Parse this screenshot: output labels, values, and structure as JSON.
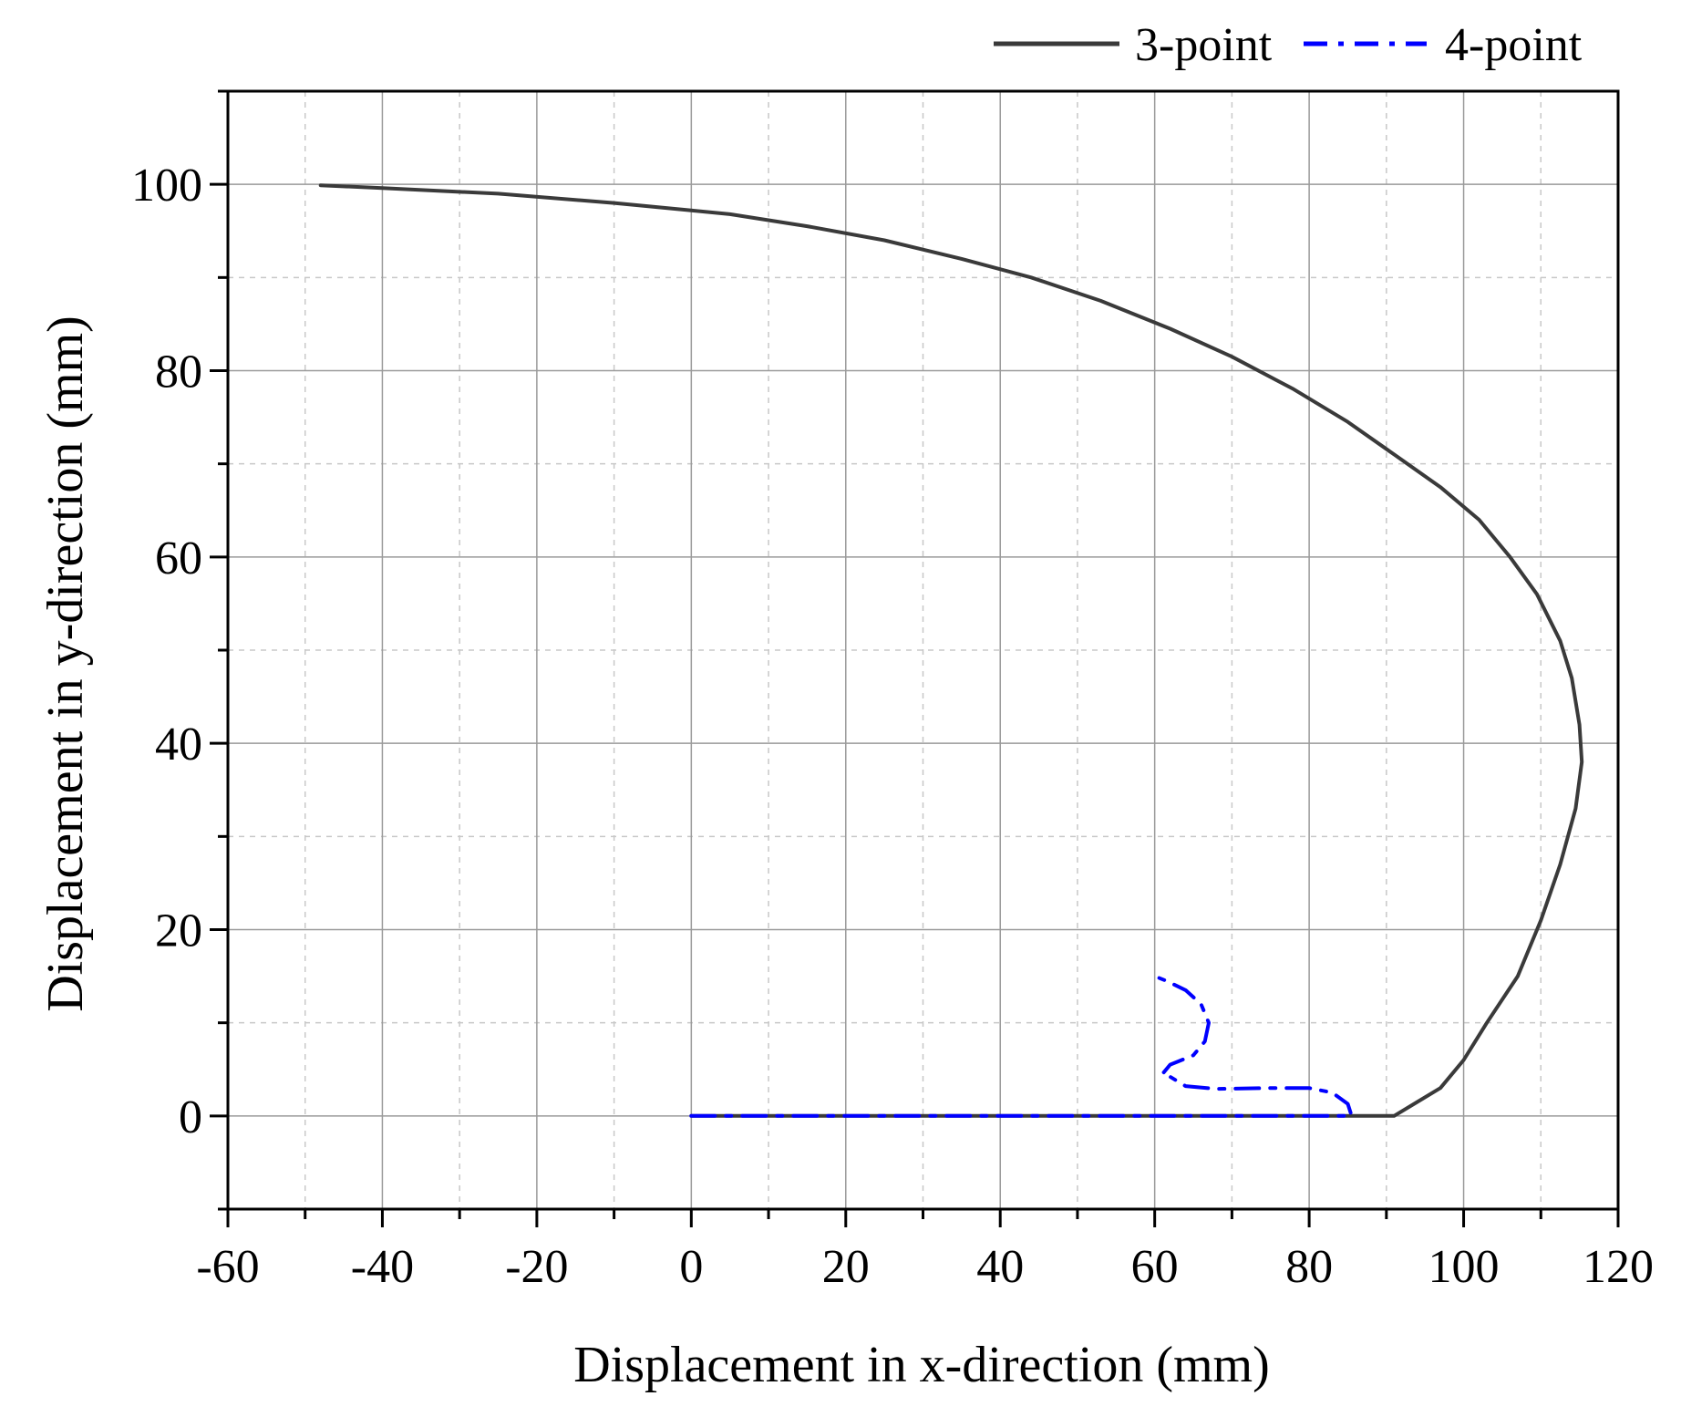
{
  "chart_data": {
    "type": "line",
    "title": "",
    "xlabel": "Displacement in x-direction (mm)",
    "ylabel": "Displacement in y-direction (mm)",
    "xlim": [
      -60,
      120
    ],
    "ylim": [
      -10,
      110
    ],
    "xticks": [
      -60,
      -40,
      -20,
      0,
      20,
      40,
      60,
      80,
      100,
      120
    ],
    "yticks": [
      0,
      20,
      40,
      60,
      80,
      100
    ],
    "xtick_labels": [
      "-60",
      "-40",
      "-20",
      "0",
      "20",
      "40",
      "60",
      "80",
      "100",
      "120"
    ],
    "ytick_labels": [
      "0",
      "20",
      "40",
      "60",
      "80",
      "100"
    ],
    "x_minor_step": 10,
    "y_minor_step": 10,
    "grid": true,
    "legend_position": "top-right, above plot",
    "series": [
      {
        "name": "3-point",
        "color": "#3a3a3a",
        "style": "solid",
        "points": [
          [
            0,
            0
          ],
          [
            91,
            0
          ],
          [
            94,
            1.5
          ],
          [
            97,
            3
          ],
          [
            100,
            6
          ],
          [
            103,
            10
          ],
          [
            107,
            15
          ],
          [
            110,
            21
          ],
          [
            112.5,
            27
          ],
          [
            114.5,
            33
          ],
          [
            115.3,
            38
          ],
          [
            115,
            42
          ],
          [
            114,
            47
          ],
          [
            112.5,
            51
          ],
          [
            109.5,
            56
          ],
          [
            106,
            60
          ],
          [
            102,
            64
          ],
          [
            97,
            67.5
          ],
          [
            91,
            71
          ],
          [
            85,
            74.5
          ],
          [
            78,
            78
          ],
          [
            70,
            81.5
          ],
          [
            62,
            84.5
          ],
          [
            53,
            87.5
          ],
          [
            44,
            90
          ],
          [
            35,
            92
          ],
          [
            25,
            94
          ],
          [
            15,
            95.5
          ],
          [
            5,
            96.8
          ],
          [
            0,
            97.2
          ],
          [
            -10,
            98
          ],
          [
            -25,
            99
          ],
          [
            -40,
            99.6
          ],
          [
            -48,
            99.9
          ]
        ]
      },
      {
        "name": "4-point",
        "color": "#0000ff",
        "style": "dashdot",
        "points": [
          [
            0,
            0
          ],
          [
            60,
            0
          ],
          [
            85.5,
            0
          ],
          [
            85,
            1.3
          ],
          [
            83,
            2.5
          ],
          [
            80,
            3
          ],
          [
            75,
            3
          ],
          [
            68,
            2.9
          ],
          [
            64,
            3.2
          ],
          [
            62,
            4.2
          ],
          [
            61,
            4.5
          ],
          [
            62,
            5.5
          ],
          [
            65,
            6.5
          ],
          [
            66.5,
            8
          ],
          [
            67,
            10
          ],
          [
            66,
            12
          ],
          [
            64,
            13.5
          ],
          [
            61.5,
            14.5
          ],
          [
            60,
            15
          ]
        ]
      }
    ]
  }
}
